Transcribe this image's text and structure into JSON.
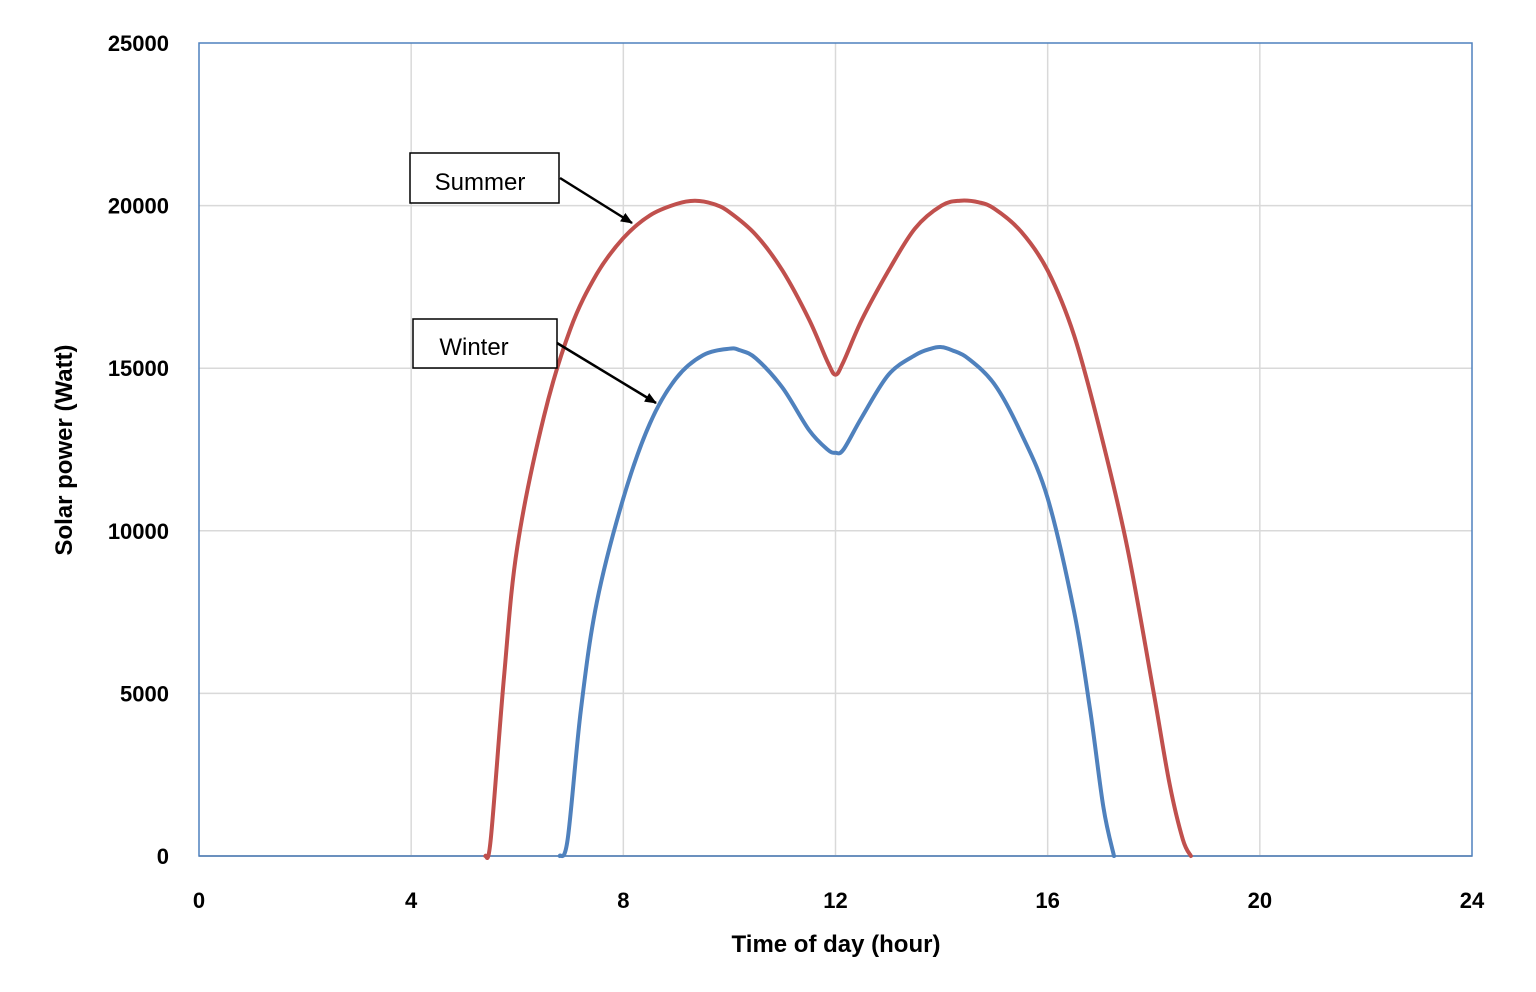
{
  "chart_data": {
    "type": "line",
    "xlabel": "Time of day (hour)",
    "ylabel": "Solar power (Watt)",
    "xlim": [
      0,
      24
    ],
    "ylim": [
      0,
      25000
    ],
    "x_ticks": [
      0,
      4,
      8,
      12,
      16,
      20,
      24
    ],
    "y_ticks": [
      0,
      5000,
      10000,
      15000,
      20000,
      25000
    ],
    "grid": true,
    "series": [
      {
        "name": "Summer",
        "color": "#C0504D",
        "x": [
          5.4,
          5.5,
          5.75,
          6.0,
          6.5,
          7.0,
          7.5,
          8.0,
          8.5,
          9.0,
          9.35,
          9.7,
          10.0,
          10.5,
          11.0,
          11.5,
          11.85,
          12.0,
          12.15,
          12.5,
          13.0,
          13.5,
          14.0,
          14.35,
          14.7,
          15.0,
          15.5,
          16.0,
          16.5,
          17.0,
          17.5,
          18.0,
          18.3,
          18.55,
          18.7
        ],
        "y": [
          0,
          500,
          5500,
          9500,
          13500,
          16200,
          17900,
          19000,
          19700,
          20050,
          20150,
          20050,
          19800,
          19100,
          18000,
          16500,
          15200,
          14800,
          15200,
          16500,
          18000,
          19300,
          20000,
          20150,
          20100,
          19900,
          19200,
          18000,
          16000,
          13000,
          9500,
          5000,
          2200,
          500,
          0
        ]
      },
      {
        "name": "Winter",
        "color": "#4F81BD",
        "x": [
          6.8,
          6.95,
          7.2,
          7.5,
          8.0,
          8.5,
          9.0,
          9.5,
          10.0,
          10.2,
          10.5,
          11.0,
          11.5,
          11.85,
          12.0,
          12.15,
          12.5,
          13.0,
          13.5,
          13.8,
          14.0,
          14.2,
          14.5,
          15.0,
          15.5,
          16.0,
          16.5,
          16.8,
          17.05,
          17.25
        ],
        "y": [
          0,
          500,
          4500,
          7800,
          11000,
          13300,
          14700,
          15400,
          15600,
          15550,
          15300,
          14400,
          13100,
          12500,
          12400,
          12500,
          13500,
          14800,
          15400,
          15600,
          15650,
          15550,
          15300,
          14500,
          13000,
          11000,
          7500,
          4500,
          1500,
          0
        ]
      }
    ],
    "annotations": [
      {
        "text": "Summer",
        "points_to_series": "Summer"
      },
      {
        "text": "Winter",
        "points_to_series": "Winter"
      }
    ]
  }
}
